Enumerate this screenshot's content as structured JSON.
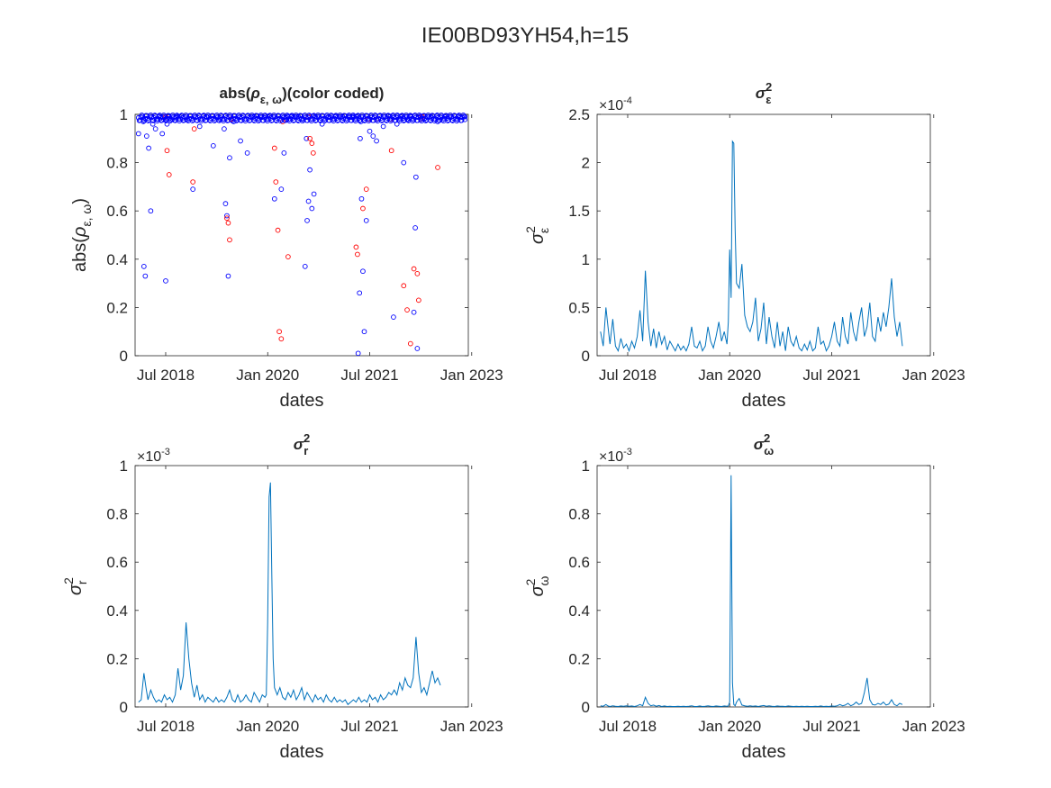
{
  "figure": {
    "title": "IE00BD93YH54,h=15",
    "subplots": [
      {
        "title": "abs(ρ_{ε, ω})(color coded)",
        "xlabel": "dates",
        "ylabel": "abs(ρ_{ε, ω})",
        "exponent": ""
      },
      {
        "title": "σ²_ε",
        "xlabel": "dates",
        "ylabel": "σ²_ε",
        "exponent": "×10^-4"
      },
      {
        "title": "σ²_r",
        "xlabel": "dates",
        "ylabel": "σ²_r",
        "exponent": "×10^-3"
      },
      {
        "title": "σ²_ω",
        "xlabel": "dates",
        "ylabel": "σ²_ω",
        "exponent": "×10^-3"
      }
    ]
  },
  "chart_data": [
    {
      "type": "scatter",
      "title": "abs(ρ_{ε, ω})(color coded)",
      "xlabel": "dates",
      "ylabel": "abs(ρ_{ε, ω})",
      "xlim": [
        2018.05,
        2022.95
      ],
      "ylim": [
        0,
        1
      ],
      "xticks": [
        2018.5,
        2020.0,
        2021.5,
        2023.0
      ],
      "xtick_labels": [
        "Jul 2018",
        "Jan 2020",
        "Jul 2021",
        "Jan 2023"
      ],
      "yticks": [
        0,
        0.2,
        0.4,
        0.6,
        0.8,
        1
      ],
      "ytick_labels": [
        "0",
        "0.2",
        "0.4",
        "0.6",
        "0.8",
        "1"
      ],
      "marker": "circle-open",
      "series": [
        {
          "color": "#0000ff",
          "x": [
            2018.1,
            2018.17,
            2018.18,
            2018.2,
            2018.22,
            2018.25,
            2018.28,
            2018.31,
            2018.35,
            2018.38,
            2018.4,
            2018.45,
            2018.47,
            2018.5,
            2018.52,
            2018.55,
            2018.6,
            2018.65,
            2018.7,
            2018.8,
            2018.9,
            2019.0,
            2019.1,
            2019.2,
            2019.3,
            2019.36,
            2019.38,
            2019.4,
            2019.42,
            2019.44,
            2019.5,
            2019.6,
            2019.7,
            2019.8,
            2019.9,
            2020.0,
            2020.1,
            2020.2,
            2020.24,
            2020.28,
            2020.3,
            2020.35,
            2020.4,
            2020.45,
            2020.5,
            2020.55,
            2020.57,
            2020.58,
            2020.6,
            2020.62,
            2020.65,
            2020.68,
            2020.7,
            2020.8,
            2020.9,
            2021.0,
            2021.1,
            2021.2,
            2021.25,
            2021.3,
            2021.33,
            2021.35,
            2021.36,
            2021.37,
            2021.38,
            2021.4,
            2021.42,
            2021.45,
            2021.5,
            2021.55,
            2021.6,
            2021.7,
            2021.8,
            2021.85,
            2021.9,
            2021.95,
            2022.0,
            2022.05,
            2022.1,
            2022.15,
            2022.17,
            2022.18,
            2022.2,
            2022.25,
            2022.3,
            2022.4,
            2022.5,
            2022.6,
            2022.7,
            2022.8,
            2022.9
          ],
          "y": [
            0.92,
            0.97,
            0.37,
            0.33,
            0.91,
            0.86,
            0.6,
            0.96,
            0.94,
            0.98,
            0.99,
            0.92,
            0.98,
            0.31,
            0.96,
            0.99,
            0.98,
            0.99,
            0.99,
            0.98,
            0.69,
            0.95,
            0.99,
            0.87,
            0.98,
            0.94,
            0.63,
            0.58,
            0.33,
            0.82,
            0.97,
            0.89,
            0.84,
            0.99,
            0.99,
            0.99,
            0.65,
            0.69,
            0.84,
            0.98,
            0.99,
            0.99,
            0.99,
            0.99,
            0.98,
            0.37,
            0.9,
            0.56,
            0.64,
            0.77,
            0.61,
            0.67,
            0.99,
            0.96,
            0.99,
            0.99,
            0.99,
            0.99,
            0.99,
            0.99,
            0.01,
            0.26,
            0.9,
            0.97,
            0.65,
            0.35,
            0.1,
            0.56,
            0.93,
            0.91,
            0.89,
            0.95,
            0.99,
            0.16,
            0.96,
            0.99,
            0.8,
            0.98,
            0.99,
            0.18,
            0.53,
            0.74,
            0.03,
            0.99,
            0.98,
            0.99,
            0.97,
            0.99,
            0.99,
            0.99,
            0.99
          ]
        },
        {
          "color": "#ff0000",
          "x": [
            2018.5,
            2018.52,
            2018.55,
            2018.9,
            2018.92,
            2019.4,
            2019.42,
            2019.44,
            2019.46,
            2020.1,
            2020.12,
            2020.15,
            2020.17,
            2020.2,
            2020.22,
            2020.3,
            2020.6,
            2020.62,
            2020.65,
            2020.67,
            2021.3,
            2021.32,
            2021.4,
            2021.45,
            2021.48,
            2021.6,
            2021.8,
            2021.82,
            2022.0,
            2022.05,
            2022.1,
            2022.15,
            2022.2,
            2022.22,
            2022.25,
            2022.27,
            2022.5
          ],
          "y": [
            0.99,
            0.85,
            0.75,
            0.72,
            0.94,
            0.57,
            0.55,
            0.48,
            0.98,
            0.86,
            0.72,
            0.52,
            0.1,
            0.07,
            0.97,
            0.41,
            0.99,
            0.9,
            0.88,
            0.84,
            0.45,
            0.42,
            0.61,
            0.69,
            0.98,
            0.98,
            0.98,
            0.85,
            0.29,
            0.19,
            0.05,
            0.36,
            0.34,
            0.23,
            0.98,
            0.99,
            0.78
          ]
        }
      ]
    },
    {
      "type": "line",
      "title": "σ²_ε",
      "xlabel": "dates",
      "ylabel": "σ²_ε",
      "exponent": -4,
      "xlim": [
        2018.05,
        2022.95
      ],
      "ylim": [
        0,
        2.5
      ],
      "xticks": [
        2018.5,
        2020.0,
        2021.5,
        2023.0
      ],
      "xtick_labels": [
        "Jul 2018",
        "Jan 2020",
        "Jul 2021",
        "Jan 2023"
      ],
      "yticks": [
        0,
        0.5,
        1,
        1.5,
        2,
        2.5
      ],
      "ytick_labels": [
        "0",
        "0.5",
        "1",
        "1.5",
        "2",
        "2.5"
      ],
      "color": "#0072bd",
      "x": [
        2018.1,
        2018.14,
        2018.18,
        2018.21,
        2018.24,
        2018.28,
        2018.32,
        2018.36,
        2018.4,
        2018.44,
        2018.48,
        2018.52,
        2018.56,
        2018.6,
        2018.64,
        2018.68,
        2018.72,
        2018.76,
        2018.8,
        2018.84,
        2018.88,
        2018.92,
        2018.96,
        2019.0,
        2019.04,
        2019.08,
        2019.12,
        2019.16,
        2019.2,
        2019.24,
        2019.28,
        2019.32,
        2019.36,
        2019.4,
        2019.44,
        2019.48,
        2019.52,
        2019.56,
        2019.6,
        2019.64,
        2019.68,
        2019.72,
        2019.76,
        2019.8,
        2019.84,
        2019.88,
        2019.92,
        2019.96,
        2019.98,
        2020.0,
        2020.02,
        2020.04,
        2020.06,
        2020.08,
        2020.1,
        2020.14,
        2020.18,
        2020.22,
        2020.26,
        2020.3,
        2020.34,
        2020.38,
        2020.42,
        2020.46,
        2020.5,
        2020.54,
        2020.58,
        2020.62,
        2020.66,
        2020.7,
        2020.74,
        2020.78,
        2020.82,
        2020.86,
        2020.9,
        2020.94,
        2020.98,
        2021.02,
        2021.06,
        2021.1,
        2021.14,
        2021.18,
        2021.22,
        2021.26,
        2021.3,
        2021.34,
        2021.38,
        2021.42,
        2021.46,
        2021.5,
        2021.54,
        2021.58,
        2021.62,
        2021.66,
        2021.7,
        2021.74,
        2021.78,
        2021.82,
        2021.86,
        2021.9,
        2021.94,
        2021.98,
        2022.02,
        2022.06,
        2022.1,
        2022.14,
        2022.18,
        2022.22,
        2022.26,
        2022.3,
        2022.34,
        2022.38,
        2022.42,
        2022.46,
        2022.5,
        2022.54
      ],
      "y": [
        0.25,
        0.1,
        0.5,
        0.3,
        0.12,
        0.38,
        0.1,
        0.05,
        0.18,
        0.08,
        0.12,
        0.05,
        0.15,
        0.08,
        0.2,
        0.47,
        0.15,
        0.88,
        0.35,
        0.1,
        0.28,
        0.08,
        0.25,
        0.12,
        0.2,
        0.06,
        0.15,
        0.1,
        0.05,
        0.12,
        0.06,
        0.1,
        0.05,
        0.12,
        0.3,
        0.1,
        0.08,
        0.15,
        0.05,
        0.1,
        0.3,
        0.15,
        0.08,
        0.2,
        0.35,
        0.15,
        0.25,
        0.12,
        0.35,
        1.1,
        0.6,
        2.22,
        2.2,
        1.3,
        0.75,
        0.7,
        0.95,
        0.42,
        0.3,
        0.25,
        0.35,
        0.6,
        0.15,
        0.28,
        0.55,
        0.12,
        0.4,
        0.2,
        0.08,
        0.35,
        0.1,
        0.25,
        0.05,
        0.3,
        0.15,
        0.1,
        0.2,
        0.08,
        0.05,
        0.12,
        0.06,
        0.15,
        0.05,
        0.08,
        0.3,
        0.12,
        0.15,
        0.05,
        0.1,
        0.2,
        0.35,
        0.15,
        0.1,
        0.4,
        0.2,
        0.12,
        0.45,
        0.25,
        0.15,
        0.35,
        0.5,
        0.2,
        0.3,
        0.55,
        0.2,
        0.15,
        0.4,
        0.25,
        0.45,
        0.3,
        0.5,
        0.8,
        0.4,
        0.2,
        0.35,
        0.1
      ]
    },
    {
      "type": "line",
      "title": "σ²_r",
      "xlabel": "dates",
      "ylabel": "σ²_r",
      "exponent": -3,
      "xlim": [
        2018.05,
        2022.95
      ],
      "ylim": [
        0,
        1
      ],
      "xticks": [
        2018.5,
        2020.0,
        2021.5,
        2023.0
      ],
      "xtick_labels": [
        "Jul 2018",
        "Jan 2020",
        "Jul 2021",
        "Jan 2023"
      ],
      "yticks": [
        0,
        0.2,
        0.4,
        0.6,
        0.8,
        1
      ],
      "ytick_labels": [
        "0",
        "0.2",
        "0.4",
        "0.6",
        "0.8",
        "1"
      ],
      "color": "#0072bd",
      "x": [
        2018.1,
        2018.14,
        2018.18,
        2018.21,
        2018.24,
        2018.28,
        2018.32,
        2018.36,
        2018.4,
        2018.44,
        2018.48,
        2018.52,
        2018.56,
        2018.6,
        2018.64,
        2018.68,
        2018.72,
        2018.76,
        2018.8,
        2018.84,
        2018.88,
        2018.92,
        2018.96,
        2019.0,
        2019.04,
        2019.08,
        2019.12,
        2019.16,
        2019.2,
        2019.24,
        2019.28,
        2019.32,
        2019.36,
        2019.4,
        2019.44,
        2019.48,
        2019.52,
        2019.56,
        2019.6,
        2019.64,
        2019.68,
        2019.72,
        2019.76,
        2019.8,
        2019.84,
        2019.88,
        2019.92,
        2019.96,
        2019.98,
        2020.0,
        2020.02,
        2020.04,
        2020.06,
        2020.08,
        2020.1,
        2020.14,
        2020.18,
        2020.22,
        2020.26,
        2020.3,
        2020.34,
        2020.38,
        2020.42,
        2020.46,
        2020.5,
        2020.54,
        2020.58,
        2020.62,
        2020.66,
        2020.7,
        2020.74,
        2020.78,
        2020.82,
        2020.86,
        2020.9,
        2020.94,
        2020.98,
        2021.02,
        2021.06,
        2021.1,
        2021.14,
        2021.18,
        2021.22,
        2021.26,
        2021.3,
        2021.34,
        2021.38,
        2021.42,
        2021.46,
        2021.5,
        2021.54,
        2021.58,
        2021.62,
        2021.66,
        2021.7,
        2021.74,
        2021.78,
        2021.82,
        2021.86,
        2021.9,
        2021.94,
        2021.98,
        2022.02,
        2022.06,
        2022.1,
        2022.14,
        2022.18,
        2022.22,
        2022.26,
        2022.3,
        2022.34,
        2022.38,
        2022.42,
        2022.46,
        2022.5,
        2022.54
      ],
      "y": [
        0.02,
        0.03,
        0.14,
        0.08,
        0.03,
        0.07,
        0.04,
        0.02,
        0.03,
        0.02,
        0.05,
        0.03,
        0.04,
        0.02,
        0.05,
        0.16,
        0.07,
        0.13,
        0.35,
        0.2,
        0.1,
        0.04,
        0.09,
        0.03,
        0.05,
        0.02,
        0.04,
        0.03,
        0.02,
        0.04,
        0.02,
        0.03,
        0.02,
        0.04,
        0.07,
        0.03,
        0.02,
        0.05,
        0.02,
        0.03,
        0.05,
        0.03,
        0.02,
        0.06,
        0.04,
        0.02,
        0.05,
        0.04,
        0.05,
        0.35,
        0.87,
        0.93,
        0.55,
        0.2,
        0.08,
        0.05,
        0.08,
        0.04,
        0.03,
        0.06,
        0.04,
        0.07,
        0.03,
        0.05,
        0.08,
        0.03,
        0.06,
        0.04,
        0.02,
        0.05,
        0.03,
        0.04,
        0.02,
        0.05,
        0.03,
        0.02,
        0.04,
        0.02,
        0.03,
        0.02,
        0.03,
        0.01,
        0.02,
        0.03,
        0.02,
        0.04,
        0.02,
        0.03,
        0.02,
        0.05,
        0.03,
        0.04,
        0.02,
        0.05,
        0.03,
        0.04,
        0.06,
        0.05,
        0.07,
        0.05,
        0.1,
        0.07,
        0.12,
        0.09,
        0.08,
        0.12,
        0.29,
        0.14,
        0.06,
        0.08,
        0.05,
        0.1,
        0.15,
        0.1,
        0.12,
        0.09
      ]
    },
    {
      "type": "line",
      "title": "σ²_ω",
      "xlabel": "dates",
      "ylabel": "σ²_ω",
      "exponent": -3,
      "xlim": [
        2018.05,
        2022.95
      ],
      "ylim": [
        0,
        1
      ],
      "xticks": [
        2018.5,
        2020.0,
        2021.5,
        2023.0
      ],
      "xtick_labels": [
        "Jul 2018",
        "Jan 2020",
        "Jul 2021",
        "Jan 2023"
      ],
      "yticks": [
        0,
        0.2,
        0.4,
        0.6,
        0.8,
        1
      ],
      "ytick_labels": [
        "0",
        "0.2",
        "0.4",
        "0.6",
        "0.8",
        "1"
      ],
      "color": "#0072bd",
      "x": [
        2018.1,
        2018.14,
        2018.18,
        2018.21,
        2018.24,
        2018.28,
        2018.32,
        2018.36,
        2018.4,
        2018.44,
        2018.48,
        2018.52,
        2018.56,
        2018.6,
        2018.64,
        2018.68,
        2018.72,
        2018.76,
        2018.8,
        2018.84,
        2018.88,
        2018.92,
        2018.96,
        2019.0,
        2019.04,
        2019.08,
        2019.12,
        2019.16,
        2019.2,
        2019.24,
        2019.28,
        2019.32,
        2019.36,
        2019.4,
        2019.44,
        2019.48,
        2019.52,
        2019.56,
        2019.6,
        2019.64,
        2019.68,
        2019.72,
        2019.76,
        2019.8,
        2019.84,
        2019.88,
        2019.92,
        2019.96,
        2019.98,
        2020.0,
        2020.02,
        2020.04,
        2020.06,
        2020.08,
        2020.1,
        2020.14,
        2020.18,
        2020.22,
        2020.26,
        2020.3,
        2020.34,
        2020.38,
        2020.42,
        2020.46,
        2020.5,
        2020.54,
        2020.58,
        2020.62,
        2020.66,
        2020.7,
        2020.74,
        2020.78,
        2020.82,
        2020.86,
        2020.9,
        2020.94,
        2020.98,
        2021.02,
        2021.06,
        2021.1,
        2021.14,
        2021.18,
        2021.22,
        2021.26,
        2021.3,
        2021.34,
        2021.38,
        2021.42,
        2021.46,
        2021.5,
        2021.54,
        2021.58,
        2021.62,
        2021.66,
        2021.7,
        2021.74,
        2021.78,
        2021.82,
        2021.86,
        2021.9,
        2021.94,
        2021.98,
        2022.02,
        2022.06,
        2022.1,
        2022.14,
        2022.18,
        2022.22,
        2022.26,
        2022.3,
        2022.34,
        2022.38,
        2022.42,
        2022.46,
        2022.5,
        2022.54
      ],
      "y": [
        0.005,
        0.003,
        0.01,
        0.004,
        0.002,
        0.005,
        0.003,
        0.002,
        0.004,
        0.003,
        0.005,
        0.003,
        0.004,
        0.002,
        0.005,
        0.01,
        0.005,
        0.04,
        0.015,
        0.005,
        0.008,
        0.003,
        0.006,
        0.002,
        0.004,
        0.002,
        0.003,
        0.002,
        0.002,
        0.003,
        0.002,
        0.003,
        0.002,
        0.003,
        0.005,
        0.002,
        0.002,
        0.004,
        0.002,
        0.003,
        0.005,
        0.003,
        0.002,
        0.004,
        0.003,
        0.002,
        0.004,
        0.003,
        0.004,
        0.02,
        0.96,
        0.1,
        0.01,
        0.005,
        0.02,
        0.035,
        0.008,
        0.005,
        0.003,
        0.005,
        0.003,
        0.004,
        0.002,
        0.004,
        0.006,
        0.003,
        0.005,
        0.003,
        0.002,
        0.004,
        0.003,
        0.003,
        0.002,
        0.004,
        0.003,
        0.002,
        0.003,
        0.002,
        0.003,
        0.002,
        0.003,
        0.002,
        0.002,
        0.003,
        0.002,
        0.004,
        0.002,
        0.003,
        0.002,
        0.004,
        0.003,
        0.005,
        0.01,
        0.005,
        0.008,
        0.015,
        0.005,
        0.01,
        0.02,
        0.01,
        0.015,
        0.06,
        0.12,
        0.03,
        0.01,
        0.008,
        0.015,
        0.01,
        0.02,
        0.008,
        0.012,
        0.03,
        0.01,
        0.005,
        0.015,
        0.01
      ]
    }
  ]
}
